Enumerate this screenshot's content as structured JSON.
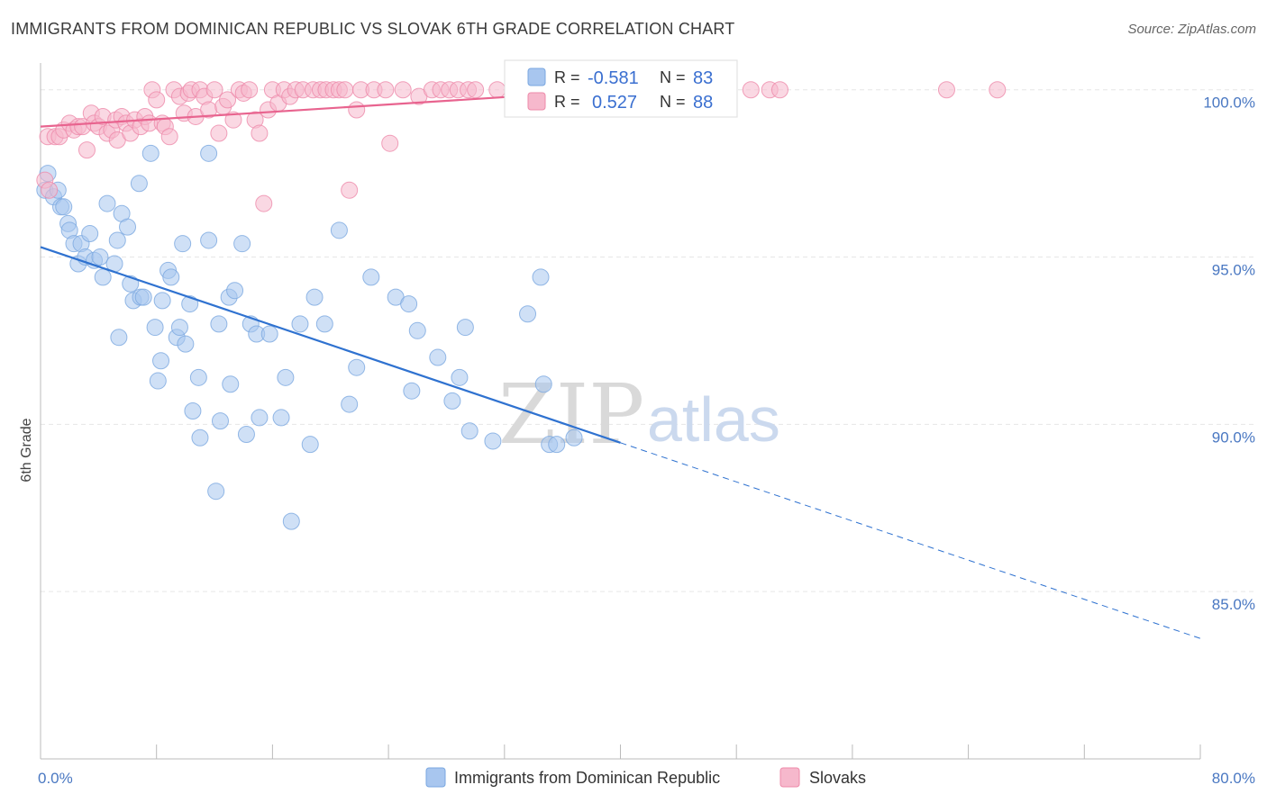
{
  "header": {
    "title": "IMMIGRANTS FROM DOMINICAN REPUBLIC VS SLOVAK 6TH GRADE CORRELATION CHART",
    "source": "Source: ZipAtlas.com"
  },
  "watermark": {
    "part1": "ZIP",
    "part2": "atlas"
  },
  "legend_box": {
    "rows": [
      {
        "r_label": "R =",
        "r_value": "-0.581",
        "n_label": "N =",
        "n_value": "83",
        "color": "#a8c6ef"
      },
      {
        "r_label": "R =",
        "r_value": "0.527",
        "n_label": "N =",
        "n_value": "88",
        "color": "#f6b8cc"
      }
    ]
  },
  "chart_data": {
    "type": "scatter",
    "title": "IMMIGRANTS FROM DOMINICAN REPUBLIC VS SLOVAK 6TH GRADE CORRELATION CHART",
    "xlabel": "",
    "ylabel": "6th Grade",
    "xlim": [
      0,
      80
    ],
    "ylim": [
      80,
      100.8
    ],
    "x_tick_labels": [
      "0.0%",
      "80.0%"
    ],
    "y_tick_values": [
      85,
      90,
      95,
      100
    ],
    "y_tick_labels": [
      "85.0%",
      "90.0%",
      "95.0%",
      "100.0%"
    ],
    "grid": true,
    "legend_position": "bottom",
    "series": [
      {
        "name": "Immigrants from Dominican Republic",
        "color": "#7aa7e0",
        "fill": "#a8c6ef",
        "points": [
          [
            0.3,
            97.0
          ],
          [
            0.5,
            97.5
          ],
          [
            0.9,
            96.8
          ],
          [
            1.2,
            97.0
          ],
          [
            1.4,
            96.5
          ],
          [
            1.6,
            96.5
          ],
          [
            1.9,
            96.0
          ],
          [
            2.0,
            95.8
          ],
          [
            2.3,
            95.4
          ],
          [
            2.6,
            94.8
          ],
          [
            2.8,
            95.4
          ],
          [
            3.1,
            95.0
          ],
          [
            3.4,
            95.7
          ],
          [
            3.7,
            94.9
          ],
          [
            4.1,
            95.0
          ],
          [
            4.3,
            94.4
          ],
          [
            4.6,
            96.6
          ],
          [
            5.1,
            94.8
          ],
          [
            5.3,
            95.5
          ],
          [
            5.4,
            92.6
          ],
          [
            5.6,
            96.3
          ],
          [
            6.0,
            95.9
          ],
          [
            6.2,
            94.2
          ],
          [
            6.4,
            93.7
          ],
          [
            6.8,
            97.2
          ],
          [
            6.9,
            93.8
          ],
          [
            7.1,
            93.8
          ],
          [
            7.6,
            98.1
          ],
          [
            7.9,
            92.9
          ],
          [
            8.1,
            91.3
          ],
          [
            8.3,
            91.9
          ],
          [
            8.4,
            93.7
          ],
          [
            8.8,
            94.6
          ],
          [
            9.0,
            94.4
          ],
          [
            9.4,
            92.6
          ],
          [
            9.6,
            92.9
          ],
          [
            9.8,
            95.4
          ],
          [
            10.0,
            92.4
          ],
          [
            10.3,
            93.6
          ],
          [
            10.5,
            90.4
          ],
          [
            10.9,
            91.4
          ],
          [
            11.0,
            89.6
          ],
          [
            11.6,
            98.1
          ],
          [
            11.6,
            95.5
          ],
          [
            12.1,
            88.0
          ],
          [
            12.3,
            93.0
          ],
          [
            12.4,
            90.1
          ],
          [
            13.0,
            93.8
          ],
          [
            13.1,
            91.2
          ],
          [
            13.4,
            94.0
          ],
          [
            13.9,
            95.4
          ],
          [
            14.2,
            89.7
          ],
          [
            14.5,
            93.0
          ],
          [
            14.9,
            92.7
          ],
          [
            15.1,
            90.2
          ],
          [
            15.8,
            92.7
          ],
          [
            16.6,
            90.2
          ],
          [
            16.9,
            91.4
          ],
          [
            17.3,
            87.1
          ],
          [
            17.9,
            93.0
          ],
          [
            18.6,
            89.4
          ],
          [
            18.9,
            93.8
          ],
          [
            19.6,
            93.0
          ],
          [
            20.6,
            95.8
          ],
          [
            21.3,
            90.6
          ],
          [
            21.8,
            91.7
          ],
          [
            22.8,
            94.4
          ],
          [
            24.5,
            93.8
          ],
          [
            25.4,
            93.6
          ],
          [
            25.6,
            91.0
          ],
          [
            26.0,
            92.8
          ],
          [
            27.4,
            92.0
          ],
          [
            28.4,
            90.7
          ],
          [
            28.9,
            91.4
          ],
          [
            29.3,
            92.9
          ],
          [
            29.6,
            89.8
          ],
          [
            31.2,
            89.5
          ],
          [
            33.6,
            93.3
          ],
          [
            34.5,
            94.4
          ],
          [
            34.7,
            91.2
          ],
          [
            35.1,
            89.4
          ],
          [
            35.6,
            89.4
          ],
          [
            36.8,
            89.6
          ]
        ],
        "trend": {
          "x1": 0,
          "y1": 95.3,
          "x2": 40,
          "y2": 89.45,
          "dash_to_x": 80,
          "dash_to_y": 83.6
        }
      },
      {
        "name": "Slovaks",
        "color": "#ee8aaa",
        "fill": "#f6b8cc",
        "points": [
          [
            0.3,
            97.3
          ],
          [
            0.5,
            98.6
          ],
          [
            0.6,
            97.0
          ],
          [
            1.0,
            98.6
          ],
          [
            1.3,
            98.6
          ],
          [
            1.6,
            98.8
          ],
          [
            2.0,
            99.0
          ],
          [
            2.3,
            98.8
          ],
          [
            2.6,
            98.9
          ],
          [
            2.9,
            98.9
          ],
          [
            3.2,
            98.2
          ],
          [
            3.5,
            99.3
          ],
          [
            3.7,
            99.0
          ],
          [
            4.0,
            98.9
          ],
          [
            4.3,
            99.2
          ],
          [
            4.6,
            98.7
          ],
          [
            4.9,
            98.8
          ],
          [
            5.2,
            99.1
          ],
          [
            5.3,
            98.5
          ],
          [
            5.6,
            99.2
          ],
          [
            5.9,
            99.0
          ],
          [
            6.2,
            98.7
          ],
          [
            6.5,
            99.1
          ],
          [
            6.9,
            98.9
          ],
          [
            7.2,
            99.2
          ],
          [
            7.5,
            99.0
          ],
          [
            7.7,
            100.0
          ],
          [
            8.0,
            99.7
          ],
          [
            8.4,
            99.0
          ],
          [
            8.6,
            98.9
          ],
          [
            8.9,
            98.6
          ],
          [
            9.2,
            100.0
          ],
          [
            9.6,
            99.8
          ],
          [
            9.9,
            99.3
          ],
          [
            10.2,
            99.9
          ],
          [
            10.4,
            100.0
          ],
          [
            10.7,
            99.2
          ],
          [
            11.0,
            100.0
          ],
          [
            11.3,
            99.8
          ],
          [
            11.6,
            99.4
          ],
          [
            12.0,
            100.0
          ],
          [
            12.3,
            98.7
          ],
          [
            12.6,
            99.5
          ],
          [
            12.9,
            99.7
          ],
          [
            13.3,
            99.1
          ],
          [
            13.7,
            100.0
          ],
          [
            14.0,
            99.9
          ],
          [
            14.4,
            100.0
          ],
          [
            14.8,
            99.1
          ],
          [
            15.1,
            98.7
          ],
          [
            15.4,
            96.6
          ],
          [
            15.7,
            99.4
          ],
          [
            16.0,
            100.0
          ],
          [
            16.4,
            99.6
          ],
          [
            16.8,
            100.0
          ],
          [
            17.2,
            99.8
          ],
          [
            17.6,
            100.0
          ],
          [
            18.1,
            100.0
          ],
          [
            18.8,
            100.0
          ],
          [
            19.3,
            100.0
          ],
          [
            19.7,
            100.0
          ],
          [
            20.2,
            100.0
          ],
          [
            20.6,
            100.0
          ],
          [
            21.0,
            100.0
          ],
          [
            21.3,
            97.0
          ],
          [
            21.8,
            99.4
          ],
          [
            22.1,
            100.0
          ],
          [
            23.0,
            100.0
          ],
          [
            23.8,
            100.0
          ],
          [
            24.1,
            98.4
          ],
          [
            25.0,
            100.0
          ],
          [
            26.1,
            99.8
          ],
          [
            27.0,
            100.0
          ],
          [
            27.6,
            100.0
          ],
          [
            28.2,
            100.0
          ],
          [
            28.8,
            100.0
          ],
          [
            29.5,
            100.0
          ],
          [
            30.0,
            100.0
          ],
          [
            31.5,
            100.0
          ],
          [
            33.0,
            100.0
          ],
          [
            36.0,
            100.0
          ],
          [
            40.0,
            100.0
          ],
          [
            42.5,
            100.0
          ],
          [
            49.0,
            100.0
          ],
          [
            50.3,
            100.0
          ],
          [
            51.0,
            100.0
          ],
          [
            62.5,
            100.0
          ],
          [
            66.0,
            100.0
          ]
        ],
        "trend": {
          "x1": 0,
          "y1": 98.9,
          "x2": 40,
          "y2": 100.0
        }
      }
    ]
  }
}
